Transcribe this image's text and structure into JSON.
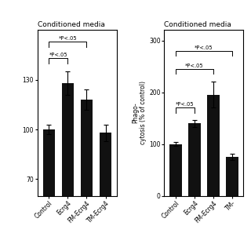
{
  "chart_data": [
    {
      "type": "bar",
      "title": "Conditioned media",
      "categories": [
        "Control",
        "Ecrg4",
        "FM-Ecrg4",
        "TM-Ecrg4"
      ],
      "values": [
        100,
        128,
        118,
        98
      ],
      "errors": [
        3,
        7,
        6,
        5
      ],
      "color": "#111111",
      "ylim": [
        60,
        160
      ],
      "yticks": [
        70,
        100,
        130
      ],
      "annotations": [
        {
          "text": "*P<.05",
          "from": "Control",
          "to": "Ecrg4",
          "y": 143
        },
        {
          "text": "*P<.05",
          "from": "Control",
          "to": "FM-Ecrg4",
          "y": 153
        }
      ]
    },
    {
      "type": "bar",
      "title": "Conditioned media",
      "categories": [
        "Control",
        "Ecrg4",
        "FM-Ecrg4",
        "TM-"
      ],
      "values": [
        100,
        140,
        195,
        75
      ],
      "errors": [
        4,
        7,
        25,
        6
      ],
      "ylabel": "Phago-\ncytosis (% of control)",
      "color": "#111111",
      "ylim": [
        0,
        320
      ],
      "yticks": [
        0,
        100,
        200,
        300
      ],
      "annotations": [
        {
          "text": "*P<.05",
          "from": "Control",
          "to": "Ecrg4",
          "y": 170
        },
        {
          "text": "*P<.05",
          "from": "Control",
          "to": "FM-Ecrg4",
          "y": 245
        },
        {
          "text": "*P<.05",
          "from": "Control",
          "to": "TM-",
          "y": 280
        }
      ]
    }
  ]
}
